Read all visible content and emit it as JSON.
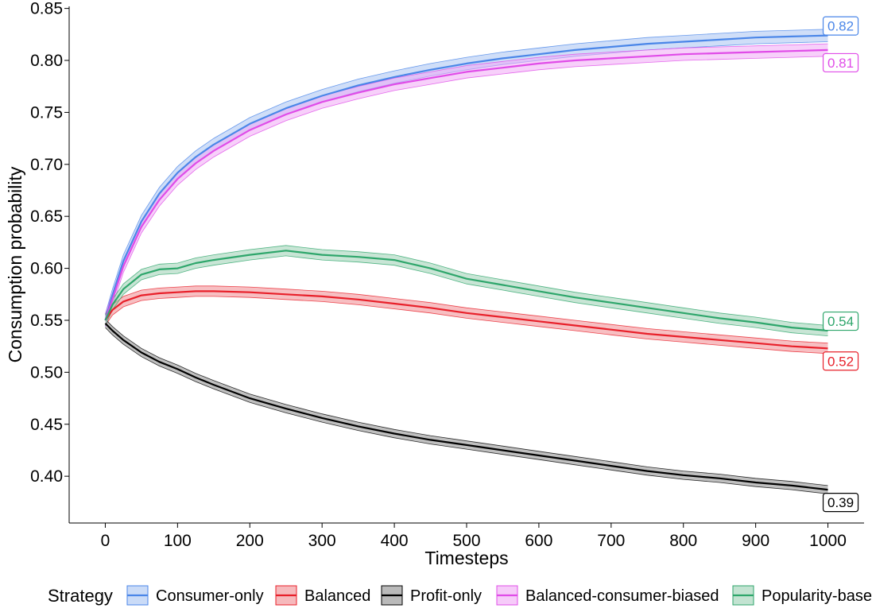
{
  "chart_data": {
    "type": "line",
    "title": "",
    "xlabel": "Timesteps",
    "ylabel": "Consumption probability",
    "xlim": [
      -50,
      1050
    ],
    "ylim": [
      0.355,
      0.852
    ],
    "x_ticks": [
      0,
      100,
      200,
      300,
      400,
      500,
      600,
      700,
      800,
      900,
      1000
    ],
    "x_tick_labels": [
      "0",
      "100",
      "200",
      "300",
      "400",
      "500",
      "600",
      "700",
      "800",
      "900",
      "1000"
    ],
    "y_ticks": [
      0.4,
      0.45,
      0.5,
      0.55,
      0.6,
      0.65,
      0.7,
      0.75,
      0.8,
      0.85
    ],
    "y_tick_labels": [
      "0.40",
      "0.45",
      "0.50",
      "0.55",
      "0.60",
      "0.65",
      "0.70",
      "0.75",
      "0.80",
      "0.85"
    ],
    "grid": false,
    "legend_position": "bottom",
    "legend_title": "Strategy",
    "x": [
      0,
      10,
      25,
      50,
      75,
      100,
      125,
      150,
      200,
      250,
      300,
      350,
      400,
      450,
      500,
      550,
      600,
      650,
      700,
      750,
      800,
      850,
      900,
      950,
      1000
    ],
    "series": [
      {
        "name": "Consumer-only",
        "color": "#4a86e8",
        "fill": "#a7c3f2",
        "band": 0.006,
        "end_label": "0.82",
        "values": [
          0.55,
          0.574,
          0.607,
          0.645,
          0.672,
          0.692,
          0.707,
          0.719,
          0.739,
          0.754,
          0.766,
          0.776,
          0.784,
          0.791,
          0.797,
          0.802,
          0.806,
          0.81,
          0.813,
          0.816,
          0.818,
          0.82,
          0.822,
          0.823,
          0.824
        ]
      },
      {
        "name": "Balanced",
        "color": "#e8202a",
        "fill": "#f08a8f",
        "band": 0.005,
        "end_label": "0.52",
        "values": [
          0.55,
          0.56,
          0.568,
          0.574,
          0.576,
          0.577,
          0.578,
          0.578,
          0.577,
          0.575,
          0.573,
          0.57,
          0.566,
          0.562,
          0.557,
          0.553,
          0.549,
          0.545,
          0.541,
          0.537,
          0.534,
          0.531,
          0.528,
          0.525,
          0.523
        ]
      },
      {
        "name": "Profit-only",
        "color": "#000000",
        "fill": "#8c8c8c",
        "band": 0.004,
        "end_label": "0.39",
        "values": [
          0.547,
          0.54,
          0.531,
          0.519,
          0.51,
          0.503,
          0.495,
          0.488,
          0.475,
          0.465,
          0.456,
          0.448,
          0.441,
          0.435,
          0.43,
          0.425,
          0.42,
          0.415,
          0.41,
          0.405,
          0.401,
          0.398,
          0.394,
          0.391,
          0.387
        ]
      },
      {
        "name": "Balanced-consumer-biased",
        "color": "#e04ce8",
        "fill": "#f0a9f5",
        "band": 0.006,
        "end_label": "0.81",
        "values": [
          0.55,
          0.57,
          0.602,
          0.64,
          0.666,
          0.686,
          0.701,
          0.713,
          0.733,
          0.748,
          0.76,
          0.769,
          0.777,
          0.783,
          0.789,
          0.793,
          0.797,
          0.8,
          0.802,
          0.804,
          0.806,
          0.807,
          0.808,
          0.809,
          0.81
        ]
      },
      {
        "name": "Popularity-based",
        "color": "#2ea66b",
        "fill": "#9ad0b3",
        "band": 0.005,
        "end_label": "0.54",
        "values": [
          0.55,
          0.565,
          0.58,
          0.594,
          0.599,
          0.6,
          0.605,
          0.608,
          0.613,
          0.617,
          0.613,
          0.611,
          0.608,
          0.6,
          0.59,
          0.584,
          0.578,
          0.572,
          0.567,
          0.562,
          0.557,
          0.552,
          0.548,
          0.543,
          0.54
        ]
      }
    ]
  }
}
